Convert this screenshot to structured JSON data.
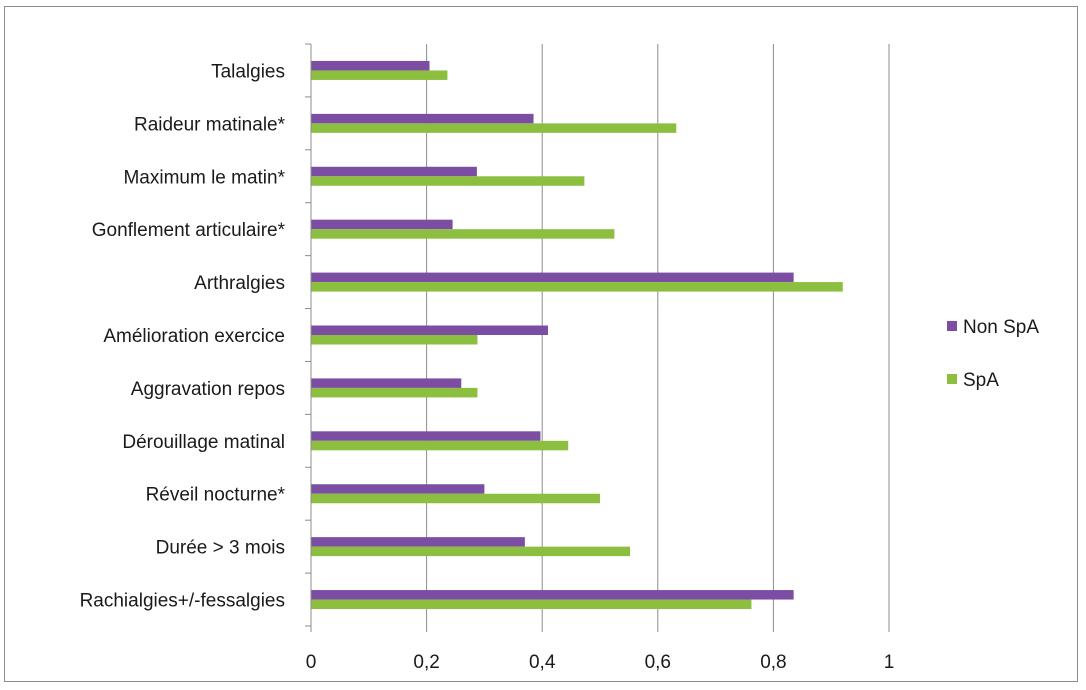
{
  "chart_data": {
    "type": "bar",
    "orientation": "horizontal",
    "categories": [
      "Talalgies",
      "Raideur matinale*",
      "Maximum le matin*",
      "Gonflement articulaire*",
      "Arthralgies",
      "Amélioration exercice",
      "Aggravation repos",
      "Dérouillage matinal",
      "Réveil nocturne*",
      "Durée > 3 mois",
      "Rachialgies+/-fessalgies"
    ],
    "series": [
      {
        "name": "Non SpA",
        "color": "#7b4ea3",
        "values": [
          0.205,
          0.385,
          0.287,
          0.245,
          0.835,
          0.41,
          0.26,
          0.397,
          0.3,
          0.37,
          0.835
        ]
      },
      {
        "name": "SpA",
        "color": "#8cbf3f",
        "values": [
          0.236,
          0.632,
          0.473,
          0.525,
          0.92,
          0.288,
          0.288,
          0.445,
          0.5,
          0.552,
          0.762
        ]
      }
    ],
    "xlim": [
      0,
      1
    ],
    "xticks": [
      "0",
      "0,2",
      "0,4",
      "0,6",
      "0,8",
      "1"
    ],
    "grid": true,
    "legend_position": "right"
  }
}
